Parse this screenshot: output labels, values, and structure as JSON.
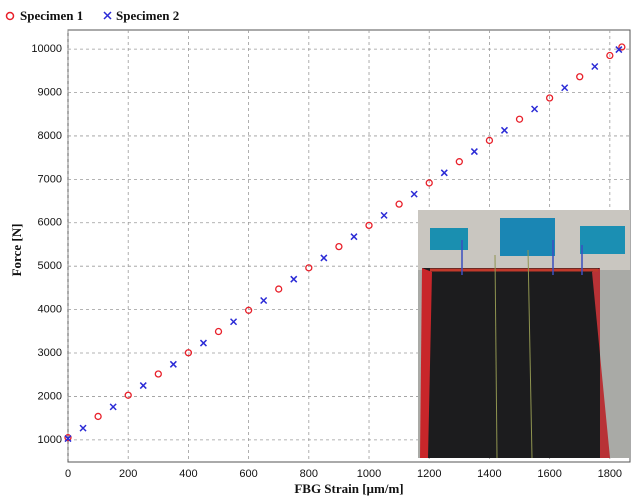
{
  "chart_data": {
    "type": "scatter",
    "xlabel": "FBG Strain [µm/m]",
    "ylabel": "Force [N]",
    "xlim": [
      0,
      1867
    ],
    "ylim": [
      490,
      10440
    ],
    "xticks": [
      0,
      200,
      400,
      600,
      800,
      1000,
      1200,
      1400,
      1600,
      1800
    ],
    "yticks": [
      1000,
      2000,
      3000,
      4000,
      5000,
      6000,
      7000,
      8000,
      9000,
      10000
    ],
    "grid": true,
    "legend": "top-left",
    "series": [
      {
        "name": "Specimen 1",
        "color": "#e8202a",
        "marker": "circle",
        "x": [
          0,
          100,
          200,
          300,
          400,
          500,
          600,
          700,
          800,
          900,
          1000,
          1100,
          1200,
          1300,
          1400,
          1500,
          1600,
          1700,
          1800,
          1840
        ],
        "values": [
          1050,
          1539,
          2028,
          2517,
          3006,
          3495,
          3984,
          4473,
          4962,
          5451,
          5940,
          6429,
          6918,
          7407,
          7896,
          8385,
          8874,
          9363,
          9852,
          10048
        ]
      },
      {
        "name": "Specimen 2",
        "color": "#2b2bd6",
        "marker": "x",
        "x": [
          0,
          50,
          150,
          250,
          350,
          450,
          550,
          650,
          750,
          850,
          950,
          1050,
          1150,
          1250,
          1350,
          1450,
          1550,
          1650,
          1750,
          1830
        ],
        "values": [
          1030,
          1270,
          1760,
          2250,
          2740,
          3230,
          3720,
          4210,
          4700,
          5190,
          5680,
          6170,
          6660,
          7150,
          7640,
          8130,
          8620,
          9110,
          9600,
          9990
        ]
      }
    ]
  }
}
